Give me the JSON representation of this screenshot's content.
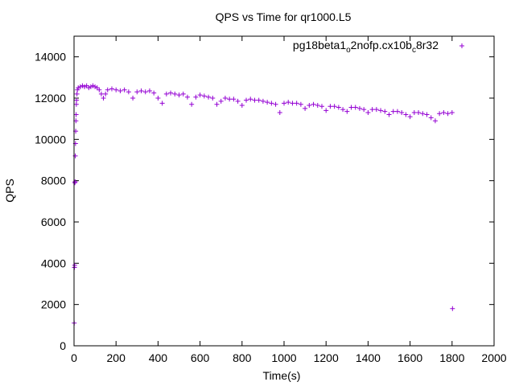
{
  "chart_data": {
    "type": "scatter",
    "title": "QPS vs Time for qr1000.L5",
    "xlabel": "Time(s)",
    "ylabel": "QPS",
    "xlim": [
      0,
      2000
    ],
    "ylim": [
      0,
      15000
    ],
    "xticks": [
      0,
      200,
      400,
      600,
      800,
      1000,
      1200,
      1400,
      1600,
      1800,
      2000
    ],
    "yticks": [
      0,
      2000,
      4000,
      6000,
      8000,
      10000,
      12000,
      14000
    ],
    "legend_position": "top-right",
    "grid": false,
    "series": [
      {
        "name": "pg18beta1_o2nofp.cx10b_c8r32",
        "name_parts": {
          "base": "pg18beta1",
          "sub1": "o",
          "mid": "2nofp.cx10b",
          "sub2": "c",
          "tail": "8r32"
        },
        "color": "#9400d3",
        "marker": "plus",
        "points": [
          [
            1,
            1100
          ],
          [
            2,
            3800
          ],
          [
            3,
            3900
          ],
          [
            4,
            7900
          ],
          [
            5,
            7950
          ],
          [
            6,
            9200
          ],
          [
            7,
            9800
          ],
          [
            8,
            10400
          ],
          [
            9,
            10900
          ],
          [
            10,
            11200
          ],
          [
            11,
            11700
          ],
          [
            12,
            11900
          ],
          [
            14,
            12200
          ],
          [
            16,
            12400
          ],
          [
            20,
            12500
          ],
          [
            30,
            12550
          ],
          [
            40,
            12600
          ],
          [
            50,
            12550
          ],
          [
            60,
            12600
          ],
          [
            70,
            12500
          ],
          [
            80,
            12550
          ],
          [
            90,
            12600
          ],
          [
            100,
            12550
          ],
          [
            110,
            12500
          ],
          [
            120,
            12400
          ],
          [
            130,
            12200
          ],
          [
            140,
            12000
          ],
          [
            150,
            12200
          ],
          [
            160,
            12400
          ],
          [
            180,
            12450
          ],
          [
            200,
            12400
          ],
          [
            220,
            12350
          ],
          [
            240,
            12400
          ],
          [
            260,
            12300
          ],
          [
            280,
            12000
          ],
          [
            300,
            12300
          ],
          [
            320,
            12350
          ],
          [
            340,
            12300
          ],
          [
            360,
            12350
          ],
          [
            380,
            12250
          ],
          [
            400,
            12000
          ],
          [
            420,
            11750
          ],
          [
            440,
            12200
          ],
          [
            460,
            12250
          ],
          [
            480,
            12200
          ],
          [
            500,
            12150
          ],
          [
            520,
            12200
          ],
          [
            540,
            12050
          ],
          [
            560,
            11700
          ],
          [
            580,
            12050
          ],
          [
            600,
            12150
          ],
          [
            620,
            12100
          ],
          [
            640,
            12050
          ],
          [
            660,
            12000
          ],
          [
            680,
            11700
          ],
          [
            700,
            11850
          ],
          [
            720,
            12000
          ],
          [
            740,
            11950
          ],
          [
            760,
            11950
          ],
          [
            780,
            11850
          ],
          [
            800,
            11650
          ],
          [
            820,
            11900
          ],
          [
            840,
            11950
          ],
          [
            860,
            11900
          ],
          [
            880,
            11900
          ],
          [
            900,
            11850
          ],
          [
            920,
            11800
          ],
          [
            940,
            11750
          ],
          [
            960,
            11700
          ],
          [
            980,
            11300
          ],
          [
            1000,
            11750
          ],
          [
            1020,
            11800
          ],
          [
            1040,
            11750
          ],
          [
            1060,
            11750
          ],
          [
            1080,
            11700
          ],
          [
            1100,
            11500
          ],
          [
            1120,
            11650
          ],
          [
            1140,
            11700
          ],
          [
            1160,
            11650
          ],
          [
            1180,
            11600
          ],
          [
            1200,
            11400
          ],
          [
            1220,
            11600
          ],
          [
            1240,
            11600
          ],
          [
            1260,
            11550
          ],
          [
            1280,
            11450
          ],
          [
            1300,
            11350
          ],
          [
            1320,
            11550
          ],
          [
            1340,
            11550
          ],
          [
            1360,
            11500
          ],
          [
            1380,
            11450
          ],
          [
            1400,
            11300
          ],
          [
            1420,
            11450
          ],
          [
            1440,
            11450
          ],
          [
            1460,
            11400
          ],
          [
            1480,
            11350
          ],
          [
            1500,
            11200
          ],
          [
            1520,
            11350
          ],
          [
            1540,
            11350
          ],
          [
            1560,
            11300
          ],
          [
            1580,
            11200
          ],
          [
            1600,
            11100
          ],
          [
            1620,
            11300
          ],
          [
            1640,
            11300
          ],
          [
            1660,
            11250
          ],
          [
            1680,
            11200
          ],
          [
            1700,
            11050
          ],
          [
            1720,
            10900
          ],
          [
            1740,
            11250
          ],
          [
            1760,
            11300
          ],
          [
            1780,
            11250
          ],
          [
            1800,
            11300
          ],
          [
            1802,
            1800
          ]
        ]
      }
    ]
  }
}
